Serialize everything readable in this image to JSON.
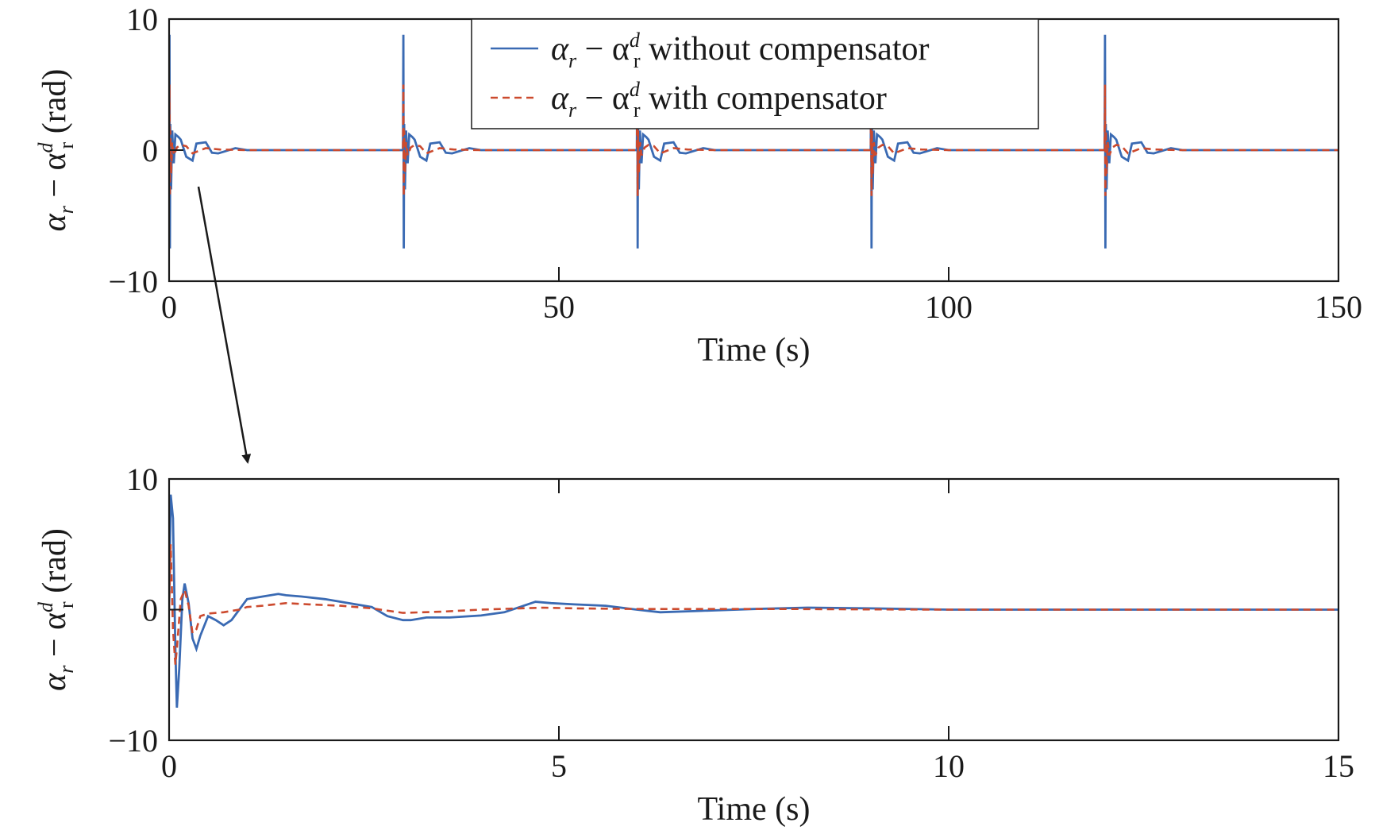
{
  "colors": {
    "without": "#3a6ab3",
    "with": "#cc4a2e",
    "axes": "#1a1a1a"
  },
  "legend": {
    "placement": "top-center",
    "entries": [
      {
        "series": "without",
        "prefix": "α",
        "sub1": "r",
        "mid": " − α",
        "sup": "d",
        "sub2": "r",
        "suffix": " without compensator",
        "style": "solid"
      },
      {
        "series": "with",
        "prefix": "α",
        "sub1": "r",
        "mid": " − α",
        "sup": "d",
        "sub2": "r",
        "suffix": " with compensator",
        "style": "dashed"
      }
    ]
  },
  "annotation": {
    "type": "arrow",
    "meaning": "zoom from top plot to bottom plot"
  },
  "chart_data": [
    {
      "type": "line",
      "xlabel": "Time (s)",
      "ylabel": {
        "prefix": "α",
        "sub1": "r",
        "mid": " − α",
        "sup": "d",
        "sub2": "r",
        "suffix": " (rad)"
      },
      "xlim": [
        0,
        150
      ],
      "ylim": [
        -10,
        10
      ],
      "xticks": [
        0,
        50,
        100,
        150
      ],
      "yticks": [
        -10,
        0,
        10
      ],
      "grid": false,
      "switch_times": [
        0,
        30,
        60,
        90,
        120
      ],
      "series": [
        {
          "key": "without",
          "x": [
            0,
            0.05,
            0.1,
            0.15,
            0.25,
            0.4,
            0.6,
            0.8,
            1.2,
            1.5,
            2.2,
            3.0,
            3.5,
            4.7,
            5.5,
            6.3,
            8.5,
            10,
            15,
            30
          ],
          "y": [
            0,
            8.8,
            -7.5,
            2.0,
            -3.0,
            1.5,
            -1.0,
            1.2,
            1.0,
            0.8,
            -0.5,
            -0.8,
            0.5,
            0.6,
            -0.2,
            -0.25,
            0.15,
            0,
            0,
            0
          ]
        },
        {
          "key": "with",
          "x": [
            0,
            0.05,
            0.1,
            0.15,
            0.25,
            0.4,
            0.6,
            1.0,
            1.5,
            2.2,
            3.0,
            4.7,
            6.5,
            10,
            15,
            30
          ],
          "y": [
            0,
            5.0,
            -3.5,
            1.5,
            -1.8,
            0.6,
            -0.4,
            0.2,
            0.4,
            0.3,
            -0.25,
            0.15,
            0.05,
            0,
            0,
            0
          ]
        }
      ]
    },
    {
      "type": "line",
      "xlabel": "Time (s)",
      "ylabel": {
        "prefix": "α",
        "sub1": "r",
        "mid": " − α",
        "sup": "d",
        "sub2": "r",
        "suffix": " (rad)"
      },
      "xlim": [
        0,
        15
      ],
      "ylim": [
        -10,
        10
      ],
      "xticks": [
        0,
        5,
        10,
        15
      ],
      "yticks": [
        -10,
        0,
        10
      ],
      "grid": false,
      "series": [
        {
          "key": "without",
          "x": [
            0,
            0.02,
            0.05,
            0.08,
            0.1,
            0.13,
            0.17,
            0.2,
            0.25,
            0.3,
            0.35,
            0.4,
            0.5,
            0.6,
            0.7,
            0.8,
            0.9,
            1.0,
            1.2,
            1.4,
            1.5,
            1.7,
            2.0,
            2.3,
            2.6,
            2.8,
            3.0,
            3.1,
            3.3,
            3.6,
            4.0,
            4.3,
            4.5,
            4.7,
            4.9,
            5.2,
            5.6,
            6.0,
            6.3,
            6.8,
            7.5,
            8.2,
            9.0,
            10.0,
            11.0,
            12.0,
            13.0,
            14.0,
            15.0
          ],
          "y": [
            0,
            8.8,
            7.0,
            -3.0,
            -7.5,
            -4.5,
            0.8,
            2.0,
            0.5,
            -2.2,
            -3.0,
            -2.0,
            -0.5,
            -0.8,
            -1.2,
            -0.8,
            0,
            0.8,
            1.0,
            1.2,
            1.1,
            1.0,
            0.8,
            0.5,
            0.2,
            -0.5,
            -0.8,
            -0.8,
            -0.6,
            -0.6,
            -0.45,
            -0.2,
            0.2,
            0.6,
            0.5,
            0.4,
            0.3,
            0,
            -0.2,
            -0.1,
            0.05,
            0.15,
            0.1,
            0,
            0,
            0,
            0,
            0,
            0
          ]
        },
        {
          "key": "with",
          "x": [
            0,
            0.02,
            0.05,
            0.08,
            0.1,
            0.15,
            0.2,
            0.25,
            0.3,
            0.35,
            0.4,
            0.5,
            0.7,
            0.9,
            1.0,
            1.2,
            1.5,
            1.8,
            2.2,
            2.6,
            3.0,
            3.5,
            4.0,
            4.5,
            4.8,
            5.2,
            6.0,
            7.0,
            8.0,
            9.0,
            10.0,
            12.0,
            15.0
          ],
          "y": [
            0,
            5.0,
            -1.5,
            -4.2,
            -3.0,
            0.8,
            1.5,
            0.3,
            -1.8,
            -1.5,
            -0.5,
            -0.3,
            -0.2,
            0,
            0.2,
            0.3,
            0.5,
            0.4,
            0.3,
            0.1,
            -0.25,
            -0.15,
            0,
            0.1,
            0.15,
            0.1,
            0.05,
            0.05,
            0.05,
            0.02,
            0,
            0,
            0
          ]
        }
      ]
    }
  ]
}
